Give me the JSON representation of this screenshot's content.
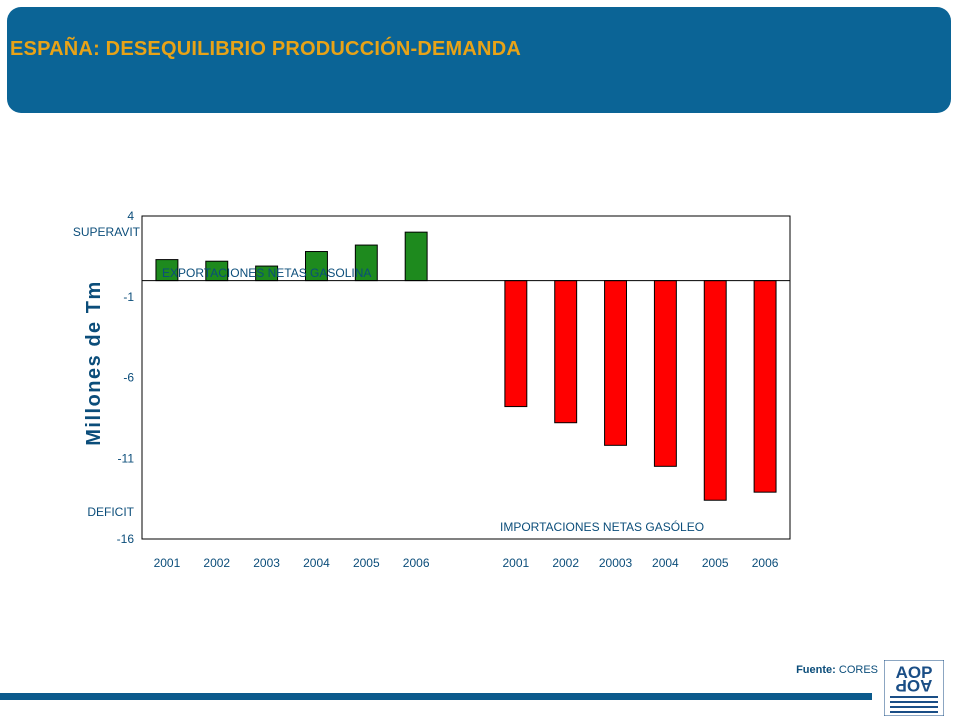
{
  "slide": {
    "title": "ESPAÑA: DESEQUILIBRIO PRODUCCIÓN-DEMANDA",
    "title_color": "#e8a317",
    "header_color": "#0b6496"
  },
  "source": {
    "label": "Fuente:",
    "value": "CORES"
  },
  "logo": {
    "text": "AOP",
    "icon": "aop-logo-icon"
  },
  "chart_data": {
    "type": "bar",
    "ylabel": "Millones de Tm",
    "ylim": [
      -16,
      4
    ],
    "yticks": [
      4,
      -1,
      -6,
      -11,
      -16
    ],
    "ytick_labels": [
      "4",
      "-1",
      "-6",
      "-11",
      "-16"
    ],
    "side_labels": {
      "top": "SUPERAVIT",
      "bottom": "DEFICIT"
    },
    "grid": false,
    "legend": "none",
    "annotations": [
      {
        "text": "EXPORTACIONES NETAS GASOLINA",
        "position": "top-left"
      },
      {
        "text": "IMPORTACIONES NETAS GASÓLEO",
        "position": "bottom-right"
      }
    ],
    "categories": [
      "2001",
      "2002",
      "2003",
      "2004",
      "2005",
      "2006",
      "",
      "2001",
      "2002",
      "20003",
      "2004",
      "2005",
      "2006"
    ],
    "series": [
      {
        "color": "#1e8a1e",
        "values": [
          1.3,
          1.2,
          0.9,
          1.8,
          2.2,
          3.0,
          null,
          null,
          null,
          null,
          null,
          null,
          null
        ]
      },
      {
        "color": "#ff0000",
        "values": [
          null,
          null,
          null,
          null,
          null,
          null,
          null,
          -7.8,
          -8.8,
          -10.2,
          -11.5,
          -13.6,
          -13.1
        ]
      }
    ]
  }
}
